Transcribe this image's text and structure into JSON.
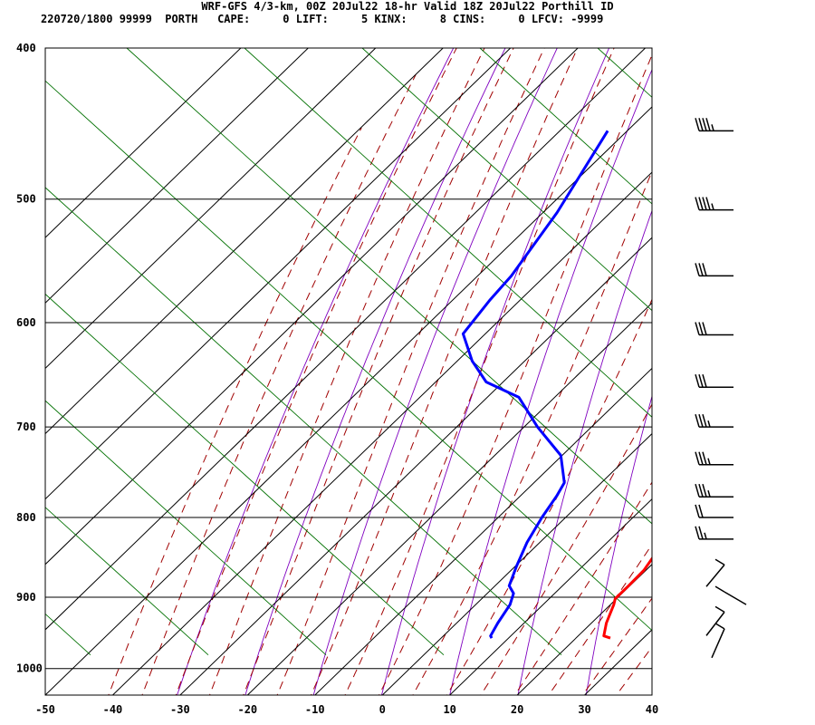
{
  "header": {
    "title": "WRF-GFS 4/3-km, 00Z 20Jul22 18-hr Valid 18Z 20Jul22 Porthill ID",
    "stats": "220720/1800 99999  PORTH   CAPE:     0 LIFT:     5 KINX:     8 CINS:     0 LFCV: -9999"
  },
  "chart_data": {
    "type": "line",
    "title": "WRF-GFS 4/3-km, 00Z 20Jul22 18-hr Valid 18Z 20Jul22 Porthill ID",
    "xlabel": "",
    "ylabel": "",
    "x_ticks": [
      -50,
      -40,
      -30,
      -20,
      -10,
      0,
      10,
      20,
      30,
      40
    ],
    "y_ticks": [
      400,
      500,
      600,
      700,
      800,
      900,
      1000
    ],
    "pressure_range": [
      400,
      1040
    ],
    "temperature_range_at_bottom": [
      -50,
      40
    ],
    "skew": "skew-T log-p",
    "grid": true,
    "series": [
      {
        "role": "temperature",
        "color": "#ff0000",
        "points": [
          [
            956,
            25.1
          ],
          [
            953,
            23.8
          ],
          [
            935,
            22.2
          ],
          [
            910,
            20.5
          ],
          [
            902,
            19.8
          ],
          [
            885,
            19.8
          ],
          [
            865,
            19.7
          ],
          [
            842,
            18.8
          ],
          [
            818,
            17.0
          ],
          [
            796,
            14.8
          ],
          [
            778,
            12.1
          ],
          [
            758,
            9.1
          ],
          [
            736,
            6.2
          ],
          [
            716,
            4.0
          ],
          [
            696,
            2.1
          ],
          [
            677,
            0.1
          ],
          [
            660,
            -1.8
          ],
          [
            638,
            -3.6
          ],
          [
            622,
            -5.1
          ],
          [
            604,
            -6.7
          ],
          [
            585,
            -8.6
          ],
          [
            560,
            -11.2
          ],
          [
            535,
            -13.9
          ],
          [
            512,
            -16.5
          ],
          [
            490,
            -19.1
          ],
          [
            470,
            -21.6
          ],
          [
            452,
            -23.8
          ]
        ]
      },
      {
        "role": "dewpoint",
        "color": "#0000ff",
        "points": [
          [
            956,
            7.5
          ],
          [
            953,
            7.0
          ],
          [
            935,
            6.1
          ],
          [
            910,
            5.1
          ],
          [
            895,
            3.9
          ],
          [
            885,
            2.1
          ],
          [
            860,
            0.2
          ],
          [
            830,
            -1.9
          ],
          [
            800,
            -3.5
          ],
          [
            775,
            -4.6
          ],
          [
            760,
            -5.5
          ],
          [
            730,
            -10.2
          ],
          [
            700,
            -18.0
          ],
          [
            670,
            -25.3
          ],
          [
            655,
            -32.5
          ],
          [
            635,
            -37.8
          ],
          [
            610,
            -43.3
          ],
          [
            580,
            -44.5
          ],
          [
            560,
            -45.0
          ],
          [
            510,
            -47.9
          ],
          [
            452,
            -52.9
          ]
        ]
      }
    ],
    "wind_barbs": {
      "levels_hPa": [
        452,
        508,
        560,
        611,
        660,
        700,
        740,
        776,
        800,
        826,
        858,
        893,
        920,
        943
      ],
      "speeds_kt": [
        35,
        35,
        30,
        30,
        30,
        25,
        25,
        25,
        20,
        15,
        5,
        10,
        10,
        5
      ]
    },
    "colors": {
      "dry_adiabat": "#8000c0",
      "moist_adiabat": "#a00000",
      "mixing_ratio": "#007000",
      "grid": "#000000"
    }
  }
}
